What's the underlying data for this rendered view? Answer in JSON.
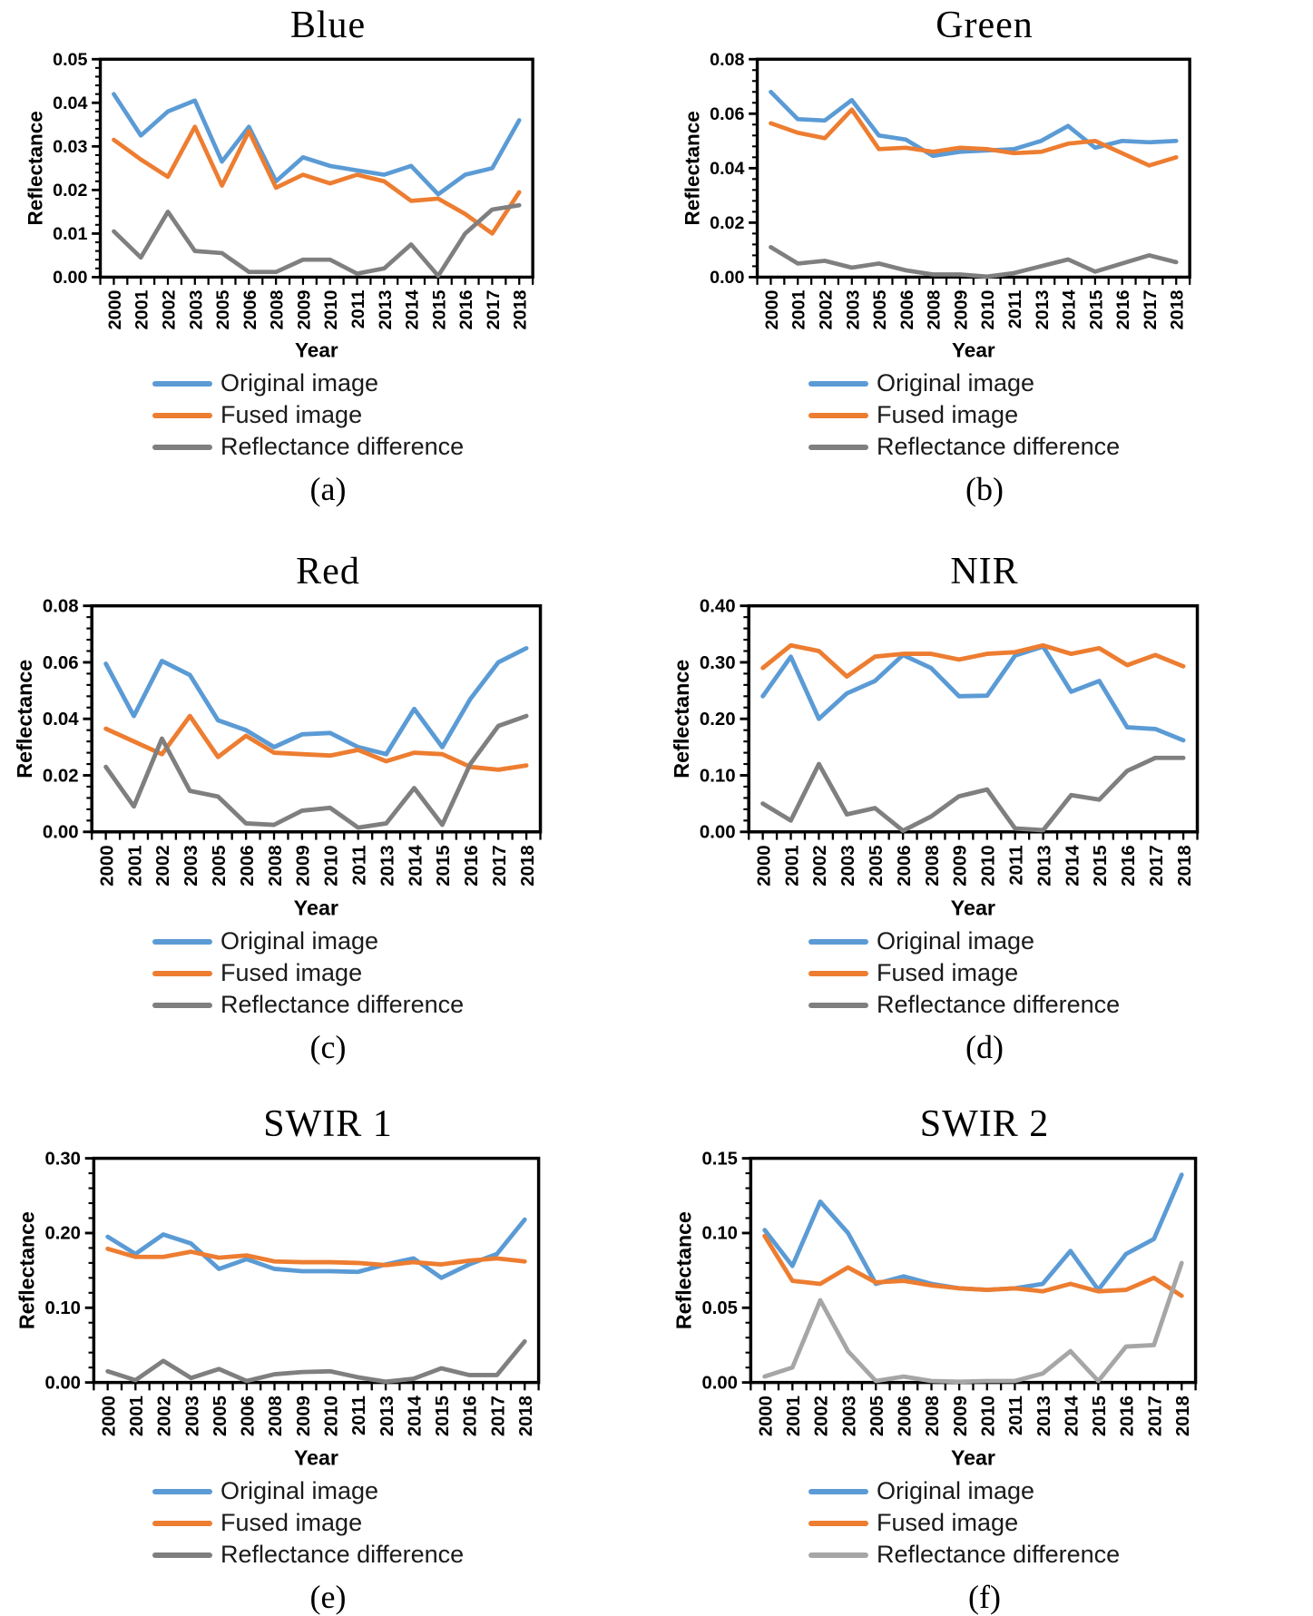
{
  "figure": {
    "ylabel": "Reflectance",
    "xlabel": "Year",
    "accent_colors": {
      "original_blue": "#5B9BD5",
      "fused_orange": "#ED7D31",
      "difference_gray": "#7F7F7F",
      "difference_light_gray": "#A6A6A6",
      "axis_black": "#000000"
    }
  },
  "chart_data": [
    {
      "type": "line",
      "title": "Blue",
      "caption": "(a)",
      "xlabel": "Year",
      "ylabel": "Reflectance",
      "ylim": [
        0,
        0.05
      ],
      "yticks": [
        "0.00",
        "0.01",
        "0.02",
        "0.03",
        "0.04",
        "0.05"
      ],
      "grid": false,
      "legend_position": "bottom-left",
      "categories": [
        "2000",
        "2001",
        "2002",
        "2003",
        "2005",
        "2006",
        "2008",
        "2009",
        "2010",
        "2011",
        "2013",
        "2014",
        "2015",
        "2016",
        "2017",
        "2018"
      ],
      "series": [
        {
          "name": "Original image",
          "color": "#5B9BD5",
          "values": [
            0.042,
            0.0325,
            0.038,
            0.0405,
            0.0265,
            0.0345,
            0.022,
            0.0275,
            0.0255,
            0.0245,
            0.0235,
            0.0255,
            0.019,
            0.0235,
            0.025,
            0.036
          ]
        },
        {
          "name": "Fused image",
          "color": "#ED7D31",
          "values": [
            0.0315,
            0.027,
            0.023,
            0.0345,
            0.021,
            0.0335,
            0.0205,
            0.0235,
            0.0215,
            0.0235,
            0.022,
            0.0175,
            0.018,
            0.0145,
            0.01,
            0.0195
          ]
        },
        {
          "name": "Reflectance difference",
          "color": "#7F7F7F",
          "values": [
            0.0105,
            0.0045,
            0.015,
            0.006,
            0.0055,
            0.0012,
            0.0012,
            0.004,
            0.004,
            0.0008,
            0.002,
            0.0075,
            0.0003,
            0.01,
            0.0155,
            0.0165
          ]
        }
      ]
    },
    {
      "type": "line",
      "title": "Green",
      "caption": "(b)",
      "xlabel": "Year",
      "ylabel": "Reflectance",
      "ylim": [
        0,
        0.08
      ],
      "yticks": [
        "0.00",
        "0.02",
        "0.04",
        "0.06",
        "0.08"
      ],
      "grid": false,
      "legend_position": "bottom-left",
      "categories": [
        "2000",
        "2001",
        "2002",
        "2003",
        "2005",
        "2006",
        "2008",
        "2009",
        "2010",
        "2011",
        "2013",
        "2014",
        "2015",
        "2016",
        "2017",
        "2018"
      ],
      "series": [
        {
          "name": "Original image",
          "color": "#5B9BD5",
          "values": [
            0.068,
            0.058,
            0.0575,
            0.065,
            0.052,
            0.0505,
            0.0445,
            0.046,
            0.0465,
            0.047,
            0.05,
            0.0555,
            0.0475,
            0.05,
            0.0495,
            0.05
          ]
        },
        {
          "name": "Fused image",
          "color": "#ED7D31",
          "values": [
            0.0565,
            0.053,
            0.051,
            0.0615,
            0.047,
            0.0475,
            0.046,
            0.0475,
            0.047,
            0.0455,
            0.046,
            0.049,
            0.05,
            0.0455,
            0.041,
            0.044
          ]
        },
        {
          "name": "Reflectance difference",
          "color": "#7F7F7F",
          "values": [
            0.011,
            0.005,
            0.006,
            0.0035,
            0.005,
            0.0025,
            0.001,
            0.001,
            0.0002,
            0.0015,
            0.004,
            0.0065,
            0.002,
            0.005,
            0.008,
            0.0055
          ]
        }
      ]
    },
    {
      "type": "line",
      "title": "Red",
      "caption": "(c)",
      "xlabel": "Year",
      "ylabel": "Reflectance",
      "ylim": [
        0,
        0.08
      ],
      "yticks": [
        "0.00",
        "0.02",
        "0.04",
        "0.06",
        "0.08"
      ],
      "grid": false,
      "legend_position": "bottom-left",
      "categories": [
        "2000",
        "2001",
        "2002",
        "2003",
        "2005",
        "2006",
        "2008",
        "2009",
        "2010",
        "2011",
        "2013",
        "2014",
        "2015",
        "2016",
        "2017",
        "2018"
      ],
      "series": [
        {
          "name": "Original image",
          "color": "#5B9BD5",
          "values": [
            0.0595,
            0.041,
            0.0605,
            0.0555,
            0.0395,
            0.036,
            0.03,
            0.0345,
            0.035,
            0.03,
            0.0275,
            0.0435,
            0.03,
            0.047,
            0.06,
            0.065
          ]
        },
        {
          "name": "Fused image",
          "color": "#ED7D31",
          "values": [
            0.0365,
            0.032,
            0.0275,
            0.041,
            0.0265,
            0.034,
            0.028,
            0.0275,
            0.027,
            0.029,
            0.025,
            0.028,
            0.0275,
            0.023,
            0.022,
            0.0235
          ]
        },
        {
          "name": "Reflectance difference",
          "color": "#7F7F7F",
          "values": [
            0.023,
            0.009,
            0.033,
            0.0145,
            0.0125,
            0.003,
            0.0025,
            0.0075,
            0.0085,
            0.0015,
            0.003,
            0.0155,
            0.0025,
            0.024,
            0.0375,
            0.041
          ]
        }
      ]
    },
    {
      "type": "line",
      "title": "NIR",
      "caption": "(d)",
      "xlabel": "Year",
      "ylabel": "Reflectance",
      "ylim": [
        0,
        0.4
      ],
      "yticks": [
        "0.00",
        "0.10",
        "0.20",
        "0.30",
        "0.40"
      ],
      "grid": false,
      "legend_position": "bottom-left",
      "categories": [
        "2000",
        "2001",
        "2002",
        "2003",
        "2005",
        "2006",
        "2008",
        "2009",
        "2010",
        "2011",
        "2013",
        "2014",
        "2015",
        "2016",
        "2017",
        "2018"
      ],
      "series": [
        {
          "name": "Original image",
          "color": "#5B9BD5",
          "values": [
            0.24,
            0.31,
            0.2,
            0.245,
            0.267,
            0.313,
            0.29,
            0.24,
            0.241,
            0.312,
            0.328,
            0.248,
            0.267,
            0.185,
            0.182,
            0.162
          ]
        },
        {
          "name": "Fused image",
          "color": "#ED7D31",
          "values": [
            0.29,
            0.33,
            0.32,
            0.275,
            0.31,
            0.315,
            0.315,
            0.305,
            0.315,
            0.318,
            0.33,
            0.315,
            0.325,
            0.295,
            0.313,
            0.293
          ]
        },
        {
          "name": "Reflectance difference",
          "color": "#7F7F7F",
          "values": [
            0.05,
            0.02,
            0.12,
            0.031,
            0.042,
            0.002,
            0.027,
            0.063,
            0.075,
            0.006,
            0.003,
            0.065,
            0.057,
            0.108,
            0.131,
            0.131
          ]
        }
      ]
    },
    {
      "type": "line",
      "title": "SWIR 1",
      "caption": "(e)",
      "xlabel": "Year",
      "ylabel": "Reflectance",
      "ylim": [
        0,
        0.3
      ],
      "yticks": [
        "0.00",
        "0.10",
        "0.20",
        "0.30"
      ],
      "grid": false,
      "legend_position": "bottom-left",
      "categories": [
        "2000",
        "2001",
        "2002",
        "2003",
        "2005",
        "2006",
        "2008",
        "2009",
        "2010",
        "2011",
        "2013",
        "2014",
        "2015",
        "2016",
        "2017",
        "2018"
      ],
      "series": [
        {
          "name": "Original image",
          "color": "#5B9BD5",
          "values": [
            0.195,
            0.172,
            0.198,
            0.186,
            0.152,
            0.165,
            0.152,
            0.149,
            0.149,
            0.148,
            0.158,
            0.166,
            0.14,
            0.158,
            0.172,
            0.218
          ]
        },
        {
          "name": "Fused image",
          "color": "#ED7D31",
          "values": [
            0.179,
            0.168,
            0.168,
            0.175,
            0.167,
            0.17,
            0.162,
            0.161,
            0.161,
            0.16,
            0.157,
            0.161,
            0.158,
            0.163,
            0.166,
            0.162
          ]
        },
        {
          "name": "Reflectance difference",
          "color": "#7F7F7F",
          "values": [
            0.015,
            0.003,
            0.029,
            0.006,
            0.018,
            0.002,
            0.011,
            0.014,
            0.015,
            0.007,
            0.001,
            0.005,
            0.019,
            0.01,
            0.01,
            0.055
          ]
        }
      ]
    },
    {
      "type": "line",
      "title": "SWIR 2",
      "caption": "(f)",
      "xlabel": "Year",
      "ylabel": "Reflectance",
      "ylim": [
        0,
        0.15
      ],
      "yticks": [
        "0.00",
        "0.05",
        "0.10",
        "0.15"
      ],
      "grid": false,
      "legend_position": "bottom-left",
      "categories": [
        "2000",
        "2001",
        "2002",
        "2003",
        "2005",
        "2006",
        "2008",
        "2009",
        "2010",
        "2011",
        "2013",
        "2014",
        "2015",
        "2016",
        "2017",
        "2018"
      ],
      "series": [
        {
          "name": "Original image",
          "color": "#5B9BD5",
          "values": [
            0.102,
            0.078,
            0.121,
            0.1,
            0.066,
            0.071,
            0.066,
            0.063,
            0.062,
            0.063,
            0.066,
            0.088,
            0.062,
            0.086,
            0.096,
            0.139
          ]
        },
        {
          "name": "Fused image",
          "color": "#ED7D31",
          "values": [
            0.098,
            0.068,
            0.066,
            0.077,
            0.067,
            0.068,
            0.065,
            0.063,
            0.062,
            0.063,
            0.061,
            0.066,
            0.061,
            0.062,
            0.07,
            0.058
          ]
        },
        {
          "name": "Reflectance difference",
          "color": "#A6A6A6",
          "values": [
            0.004,
            0.01,
            0.055,
            0.021,
            0.001,
            0.004,
            0.001,
            0.0005,
            0.001,
            0.001,
            0.006,
            0.021,
            0.001,
            0.024,
            0.025,
            0.08
          ]
        }
      ]
    }
  ]
}
